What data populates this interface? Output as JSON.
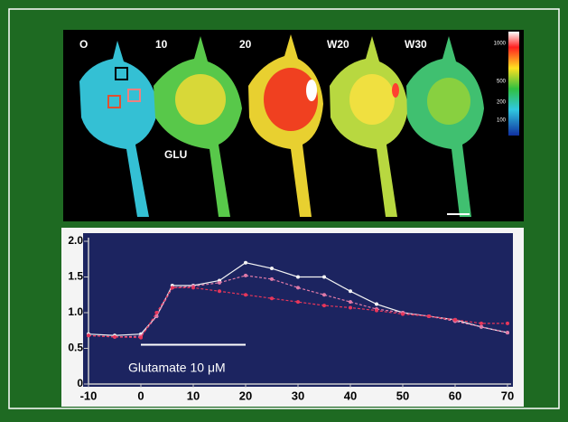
{
  "image_panel": {
    "frame_labels": [
      "O",
      "10",
      "20",
      "W20",
      "W30"
    ],
    "stimulus_label": "GLU",
    "colorbar_labels": [
      "1000",
      "500",
      "200",
      "100"
    ]
  },
  "chart_data": {
    "type": "line",
    "x": [
      -10,
      -5,
      0,
      3,
      6,
      10,
      15,
      20,
      25,
      30,
      35,
      40,
      45,
      50,
      55,
      60,
      65,
      70
    ],
    "series": [
      {
        "color": "#f4f4f4",
        "values": [
          0.7,
          0.68,
          0.7,
          0.95,
          1.38,
          1.38,
          1.45,
          1.7,
          1.62,
          1.5,
          1.5,
          1.3,
          1.12,
          1.0,
          0.95,
          0.9,
          0.8,
          0.72
        ]
      },
      {
        "color": "#e07aa8",
        "values": [
          0.68,
          0.66,
          0.67,
          0.95,
          1.35,
          1.37,
          1.42,
          1.52,
          1.47,
          1.35,
          1.25,
          1.15,
          1.05,
          1.0,
          0.95,
          0.88,
          0.8,
          0.72
        ]
      },
      {
        "color": "#e8365a",
        "values": [
          0.68,
          0.66,
          0.65,
          1.0,
          1.35,
          1.35,
          1.3,
          1.25,
          1.2,
          1.15,
          1.1,
          1.07,
          1.03,
          0.98,
          0.95,
          0.9,
          0.85,
          0.85
        ]
      }
    ],
    "xlim": [
      -10,
      70
    ],
    "xticks": [
      -10,
      0,
      10,
      20,
      30,
      40,
      50,
      60,
      70
    ],
    "ylim": [
      0,
      2
    ],
    "yticks": [
      0,
      0.5,
      {
        "value": 1,
        "label": "1.0"
      },
      1.5,
      {
        "value": 2,
        "label": "2.0"
      }
    ],
    "stimulus": {
      "label": "Glutamate 10 μM",
      "start": 0,
      "end": 20,
      "y": 0.55
    }
  }
}
